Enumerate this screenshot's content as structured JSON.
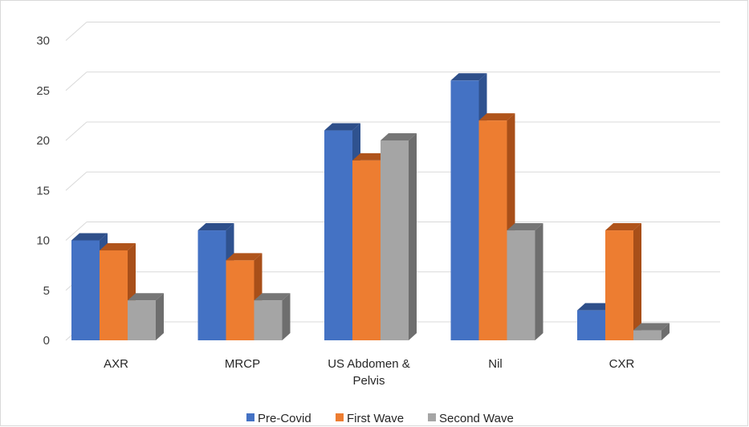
{
  "chart_data": {
    "type": "bar",
    "style": "3d-clustered-column",
    "categories": [
      "AXR",
      "MRCP",
      "US Abdomen & Pelvis",
      "Nil",
      "CXR"
    ],
    "category_lines": [
      [
        "AXR"
      ],
      [
        "MRCP"
      ],
      [
        "US Abdomen &",
        "Pelvis"
      ],
      [
        "Nil"
      ],
      [
        "CXR"
      ]
    ],
    "series": [
      {
        "name": "Pre-Covid",
        "values": [
          10,
          11,
          21,
          26,
          3
        ],
        "color": "#4472C4",
        "side_color": "#2F528F",
        "top_color": "#2E4F8A"
      },
      {
        "name": "First Wave",
        "values": [
          9,
          8,
          18,
          22,
          11
        ],
        "color": "#ED7D31",
        "side_color": "#A84F19",
        "top_color": "#B0541B"
      },
      {
        "name": "Second Wave",
        "values": [
          4,
          4,
          20,
          11,
          1
        ],
        "color": "#A5A5A5",
        "side_color": "#6E6E6E",
        "top_color": "#767676"
      }
    ],
    "y_ticks": [
      "0",
      "5",
      "10",
      "15",
      "20",
      "25",
      "30"
    ],
    "ylim": [
      0,
      30
    ],
    "grid": true,
    "legend_position": "bottom",
    "title": "",
    "xlabel": "",
    "ylabel": ""
  }
}
